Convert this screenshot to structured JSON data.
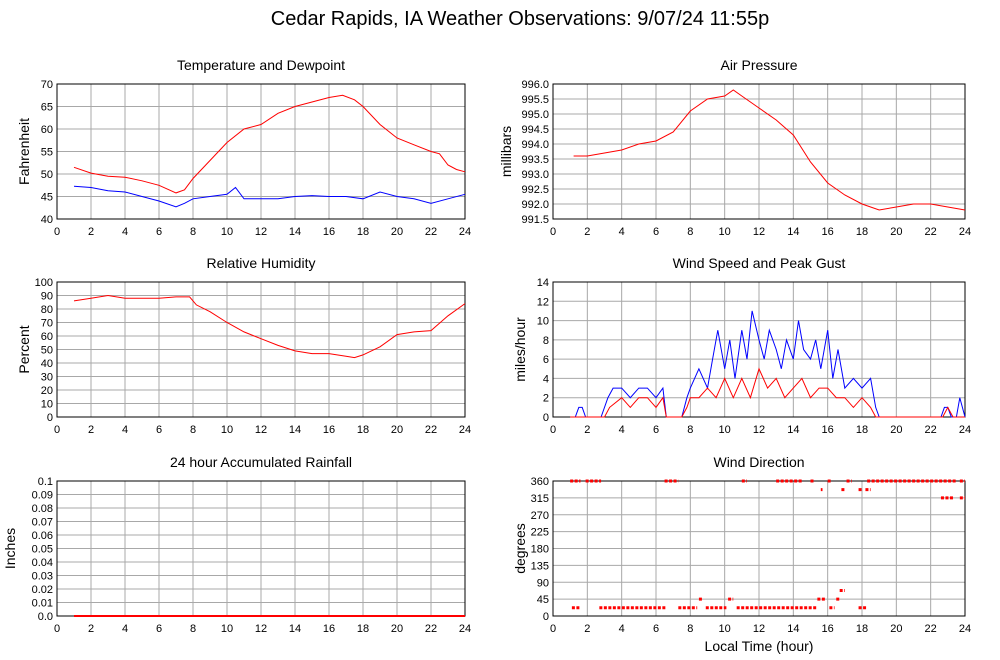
{
  "title": "Cedar Rapids, IA Weather Observations: 9/07/24 11:55p",
  "x_axis_label": "Local Time (hour)",
  "colors": {
    "red": "#ff0000",
    "blue": "#0000ff",
    "grid": "#a8a8a8"
  },
  "chart_data": [
    {
      "id": "temp",
      "type": "line",
      "title": "Temperature and Dewpoint",
      "ylabel": "Fahrenheit",
      "xlim": [
        0,
        24
      ],
      "ylim": [
        40,
        70
      ],
      "yticks": [
        40,
        45,
        50,
        55,
        60,
        65,
        70
      ],
      "xticks": [
        0,
        2,
        4,
        6,
        8,
        10,
        12,
        14,
        16,
        18,
        20,
        22,
        24
      ],
      "ydecimals": 0,
      "series": [
        {
          "color": "#ff0000",
          "x": [
            1,
            2,
            3,
            4,
            5,
            6,
            7,
            7.5,
            8,
            9,
            10,
            11,
            12,
            13,
            14,
            15,
            16,
            16.8,
            17.5,
            18,
            19,
            20,
            21,
            22,
            22.5,
            23,
            23.5,
            24
          ],
          "y": [
            51.5,
            50.2,
            49.5,
            49.3,
            48.5,
            47.5,
            45.8,
            46.5,
            49,
            53,
            57,
            60,
            61,
            63.5,
            65,
            66,
            67,
            67.5,
            66.5,
            65,
            61,
            58,
            56.5,
            55,
            54.5,
            52,
            51,
            50.5
          ]
        },
        {
          "color": "#0000ff",
          "x": [
            1,
            2,
            3,
            4,
            5,
            6,
            7,
            7.5,
            8,
            9,
            10,
            10.5,
            11,
            12,
            13,
            14,
            15,
            16,
            17,
            18,
            19,
            20,
            21,
            22,
            23,
            24
          ],
          "y": [
            47.3,
            47,
            46.3,
            46,
            45,
            44,
            42.7,
            43.5,
            44.5,
            45,
            45.5,
            47,
            44.5,
            44.5,
            44.5,
            45,
            45.2,
            45,
            45,
            44.5,
            46,
            45,
            44.5,
            43.5,
            44.5,
            45.5
          ]
        }
      ]
    },
    {
      "id": "pressure",
      "type": "line",
      "title": "Air Pressure",
      "ylabel": "millibars",
      "xlim": [
        0,
        24
      ],
      "ylim": [
        991.5,
        996.0
      ],
      "yticks": [
        991.5,
        992.0,
        992.5,
        993.0,
        993.5,
        994.0,
        994.5,
        995.0,
        995.5,
        996.0
      ],
      "xticks": [
        0,
        2,
        4,
        6,
        8,
        10,
        12,
        14,
        16,
        18,
        20,
        22,
        24
      ],
      "ydecimals": 1,
      "series": [
        {
          "color": "#ff0000",
          "x": [
            1.2,
            2,
            3,
            4,
            5,
            6,
            7,
            8,
            9,
            10,
            10.5,
            11,
            12,
            13,
            14,
            15,
            16,
            17,
            18,
            19,
            20,
            21,
            22,
            23,
            24
          ],
          "y": [
            993.6,
            993.6,
            993.7,
            993.8,
            994.0,
            994.1,
            994.4,
            995.1,
            995.5,
            995.6,
            995.8,
            995.6,
            995.2,
            994.8,
            994.3,
            993.4,
            992.7,
            992.3,
            992.0,
            991.8,
            991.9,
            992.0,
            992.0,
            991.9,
            991.8
          ]
        }
      ]
    },
    {
      "id": "humidity",
      "type": "line",
      "title": "Relative Humidity",
      "ylabel": "Percent",
      "xlim": [
        0,
        24
      ],
      "ylim": [
        0,
        100
      ],
      "yticks": [
        0,
        10,
        20,
        30,
        40,
        50,
        60,
        70,
        80,
        90,
        100
      ],
      "xticks": [
        0,
        2,
        4,
        6,
        8,
        10,
        12,
        14,
        16,
        18,
        20,
        22,
        24
      ],
      "ydecimals": 0,
      "series": [
        {
          "color": "#ff0000",
          "x": [
            1,
            2,
            3,
            4,
            5,
            6,
            7,
            7.8,
            8.2,
            9,
            10,
            11,
            12,
            13,
            14,
            15,
            16,
            17,
            17.5,
            18,
            19,
            20,
            21,
            22,
            23,
            24
          ],
          "y": [
            86,
            88,
            90,
            88,
            88,
            88,
            89,
            89,
            83,
            78,
            70,
            63,
            58,
            53,
            49,
            47,
            47,
            45,
            44,
            46,
            52,
            61,
            63,
            64,
            75,
            84
          ]
        }
      ]
    },
    {
      "id": "wind",
      "type": "line",
      "title": "Wind Speed and Peak Gust",
      "ylabel": "miles/hour",
      "xlim": [
        0,
        24
      ],
      "ylim": [
        0,
        14
      ],
      "yticks": [
        0,
        2,
        4,
        6,
        8,
        10,
        12,
        14
      ],
      "xticks": [
        0,
        2,
        4,
        6,
        8,
        10,
        12,
        14,
        16,
        18,
        20,
        22,
        24
      ],
      "ydecimals": 0,
      "series": [
        {
          "color": "#0000ff",
          "x": [
            1,
            1.3,
            1.5,
            1.7,
            1.9,
            2.8,
            3.2,
            3.5,
            4,
            4.5,
            5,
            5.5,
            6,
            6.4,
            6.6,
            7.5,
            7.8,
            8,
            8.5,
            9,
            9.3,
            9.6,
            10,
            10.3,
            10.6,
            11,
            11.3,
            11.6,
            12,
            12.3,
            12.6,
            13,
            13.3,
            13.6,
            14,
            14.3,
            14.6,
            15,
            15.3,
            15.6,
            16,
            16.3,
            16.6,
            17,
            17.5,
            18,
            18.5,
            18.8,
            19,
            22.6,
            22.8,
            23,
            23.2,
            23.5,
            23.7,
            24
          ],
          "y": [
            0,
            0,
            1,
            1,
            0,
            0,
            2,
            3,
            3,
            2,
            3,
            3,
            2,
            3,
            0,
            0,
            2,
            3,
            5,
            3,
            6,
            9,
            5,
            8,
            4,
            9,
            6,
            11,
            8,
            6,
            9,
            7,
            5,
            8,
            6,
            10,
            7,
            6,
            8,
            5,
            9,
            4,
            7,
            3,
            4,
            3,
            4,
            1,
            0,
            0,
            1,
            1,
            0,
            0,
            2,
            0
          ]
        },
        {
          "color": "#ff0000",
          "x": [
            1,
            3,
            3.3,
            4,
            4.5,
            5,
            5.5,
            6,
            6.4,
            6.6,
            7.5,
            7.8,
            8,
            8.5,
            9,
            9.5,
            10,
            10.5,
            11,
            11.5,
            12,
            12.5,
            13,
            13.5,
            14,
            14.5,
            15,
            15.5,
            16,
            16.5,
            17,
            17.5,
            18,
            18.5,
            18.8,
            19,
            22.7,
            23,
            23.3,
            24
          ],
          "y": [
            0,
            0,
            1,
            2,
            1,
            2,
            2,
            1,
            2,
            0,
            0,
            1,
            2,
            2,
            3,
            2,
            4,
            2,
            4,
            2,
            5,
            3,
            4,
            2,
            3,
            4,
            2,
            3,
            3,
            2,
            2,
            1,
            2,
            1,
            0,
            0,
            0,
            1,
            0,
            0
          ]
        }
      ]
    },
    {
      "id": "rain",
      "type": "line",
      "title": "24 hour Accumulated Rainfall",
      "ylabel": "Inches",
      "xlim": [
        0,
        24
      ],
      "ylim": [
        0,
        0.1
      ],
      "yticks": [
        0.0,
        0.01,
        0.02,
        0.03,
        0.04,
        0.05,
        0.06,
        0.07,
        0.08,
        0.09,
        0.1
      ],
      "yticklabels": [
        "0.0",
        "0.01",
        "0.02",
        "0.03",
        "0.04",
        "0.05",
        "0.06",
        "0.07",
        "0.08",
        "0.09",
        "0.1"
      ],
      "xticks": [
        0,
        2,
        4,
        6,
        8,
        10,
        12,
        14,
        16,
        18,
        20,
        22,
        24
      ],
      "ydecimals": 2,
      "series": [
        {
          "color": "#ff0000",
          "x": [
            1,
            24
          ],
          "y": [
            0,
            0
          ]
        }
      ]
    },
    {
      "id": "direction",
      "type": "scatter",
      "title": "Wind Direction",
      "ylabel": "degrees",
      "xlim": [
        0,
        24
      ],
      "ylim": [
        0,
        360
      ],
      "yticks": [
        0,
        45,
        90,
        135,
        180,
        225,
        270,
        315,
        360
      ],
      "xticks": [
        0,
        2,
        4,
        6,
        8,
        10,
        12,
        14,
        16,
        18,
        20,
        22,
        24
      ],
      "ydecimals": 0,
      "show_xlabel": true,
      "series": [
        {
          "color": "#ff0000",
          "segments": [
            {
              "y": 360,
              "ranges": [
                [
                  1.0,
                  1.6
                ],
                [
                  1.9,
                  2.8
                ],
                [
                  6.5,
                  7.3
                ],
                [
                  11.0,
                  11.3
                ],
                [
                  13.0,
                  14.5
                ],
                [
                  15.0,
                  15.2
                ],
                [
                  16.0,
                  16.2
                ],
                [
                  17.1,
                  17.4
                ],
                [
                  18.3,
                  23.5
                ],
                [
                  23.7,
                  24.0
                ]
              ]
            },
            {
              "y": 22,
              "ranges": [
                [
                  1.1,
                  1.6
                ],
                [
                  2.7,
                  6.6
                ],
                [
                  7.3,
                  8.4
                ],
                [
                  8.9,
                  10.1
                ],
                [
                  10.7,
                  15.4
                ],
                [
                  16.1,
                  16.4
                ],
                [
                  17.8,
                  18.3
                ]
              ]
            },
            {
              "y": 315,
              "ranges": [
                [
                  22.6,
                  23.3
                ],
                [
                  23.7,
                  24.0
                ]
              ]
            },
            {
              "y": 45,
              "ranges": [
                [
                  8.5,
                  8.7
                ],
                [
                  10.2,
                  10.5
                ],
                [
                  15.4,
                  15.9
                ],
                [
                  16.5,
                  16.7
                ]
              ]
            },
            {
              "y": 337,
              "ranges": [
                [
                  15.6,
                  15.7
                ],
                [
                  16.8,
                  17.0
                ],
                [
                  17.8,
                  18.0
                ],
                [
                  18.2,
                  18.5
                ]
              ]
            },
            {
              "y": 68,
              "ranges": [
                [
                  16.7,
                  17.0
                ]
              ]
            }
          ]
        }
      ]
    }
  ]
}
